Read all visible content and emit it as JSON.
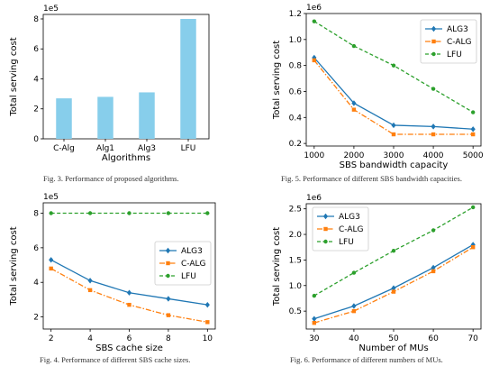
{
  "colors": {
    "alg3": "#1f77b4",
    "calg": "#ff7f0e",
    "lfu": "#2ca02c",
    "bar": "#87ceeb"
  },
  "captions": {
    "fig3": "Fig. 3.   Performance of proposed algorithms.",
    "fig4": "Fig. 4.   Performance of different SBS cache sizes.",
    "fig5": "Fig. 5.   Performance of different SBS bandwidth capacities.",
    "fig6": "Fig. 6.   Performance of different numbers of MUs."
  },
  "chart_data": [
    {
      "id": "fig3",
      "type": "bar",
      "categories": [
        "C-Alg",
        "Alg1",
        "Alg3",
        "LFU"
      ],
      "values": [
        2.7,
        2.8,
        3.1,
        8.0
      ],
      "scale_label": "1e5",
      "ylabel": "Total serving cost",
      "xlabel": "Algorithms",
      "ylim": [
        0,
        8.3
      ],
      "yticks": [
        0,
        2,
        4,
        6,
        8
      ],
      "grid": false,
      "legend": "none"
    },
    {
      "id": "fig4",
      "type": "line",
      "x": [
        2,
        4,
        6,
        8,
        10
      ],
      "xticks": [
        2,
        4,
        6,
        8,
        10
      ],
      "xlim": [
        1.6,
        10.4
      ],
      "scale_label": "1e5",
      "ylabel": "Total serving cost",
      "xlabel": "SBS cache size",
      "ylim": [
        1.3,
        8.6
      ],
      "yticks": [
        2,
        4,
        6,
        8
      ],
      "legend": "center-right",
      "series": [
        {
          "name": "ALG3",
          "values": [
            5.3,
            4.1,
            3.4,
            3.05,
            2.7
          ],
          "color": "#1f77b4",
          "marker": "diamond",
          "dash": ""
        },
        {
          "name": "C-ALG",
          "values": [
            4.8,
            3.55,
            2.7,
            2.1,
            1.7
          ],
          "color": "#ff7f0e",
          "marker": "square",
          "dash": "6,2,1.5,2"
        },
        {
          "name": "LFU",
          "values": [
            8.0,
            8.0,
            8.0,
            8.0,
            8.0
          ],
          "color": "#2ca02c",
          "marker": "circle",
          "dash": "4,2.5"
        }
      ]
    },
    {
      "id": "fig5",
      "type": "line",
      "x": [
        1000,
        2000,
        3000,
        4000,
        5000
      ],
      "xticks": [
        1000,
        2000,
        3000,
        4000,
        5000
      ],
      "xlim": [
        800,
        5200
      ],
      "scale_label": "1e6",
      "ylabel": "Total serving cost",
      "xlabel": "SBS bandwidth capacity",
      "ylim": [
        0.18,
        1.2
      ],
      "yticks": [
        0.2,
        0.4,
        0.6,
        0.8,
        1.0,
        1.2
      ],
      "legend": "top-right",
      "series": [
        {
          "name": "ALG3",
          "values": [
            0.86,
            0.51,
            0.34,
            0.33,
            0.31
          ],
          "color": "#1f77b4",
          "marker": "diamond",
          "dash": ""
        },
        {
          "name": "C-ALG",
          "values": [
            0.84,
            0.46,
            0.27,
            0.27,
            0.27
          ],
          "color": "#ff7f0e",
          "marker": "square",
          "dash": "6,2,1.5,2"
        },
        {
          "name": "LFU",
          "values": [
            1.14,
            0.95,
            0.8,
            0.62,
            0.44
          ],
          "color": "#2ca02c",
          "marker": "circle",
          "dash": "4,2.5"
        }
      ]
    },
    {
      "id": "fig6",
      "type": "line",
      "x": [
        30,
        40,
        50,
        60,
        70
      ],
      "xticks": [
        30,
        40,
        50,
        60,
        70
      ],
      "xlim": [
        28,
        72
      ],
      "scale_label": "1e6",
      "ylabel": "Total serving cost",
      "xlabel": "Number of MUs",
      "ylim": [
        0.15,
        2.6
      ],
      "yticks": [
        0.5,
        1.0,
        1.5,
        2.0,
        2.5
      ],
      "legend": "top-left",
      "series": [
        {
          "name": "ALG3",
          "values": [
            0.35,
            0.6,
            0.95,
            1.35,
            1.8
          ],
          "color": "#1f77b4",
          "marker": "diamond",
          "dash": ""
        },
        {
          "name": "C-ALG",
          "values": [
            0.27,
            0.5,
            0.88,
            1.28,
            1.75
          ],
          "color": "#ff7f0e",
          "marker": "square",
          "dash": "6,2,1.5,2"
        },
        {
          "name": "LFU",
          "values": [
            0.8,
            1.25,
            1.68,
            2.08,
            2.53
          ],
          "color": "#2ca02c",
          "marker": "circle",
          "dash": "4,2.5"
        }
      ]
    }
  ]
}
